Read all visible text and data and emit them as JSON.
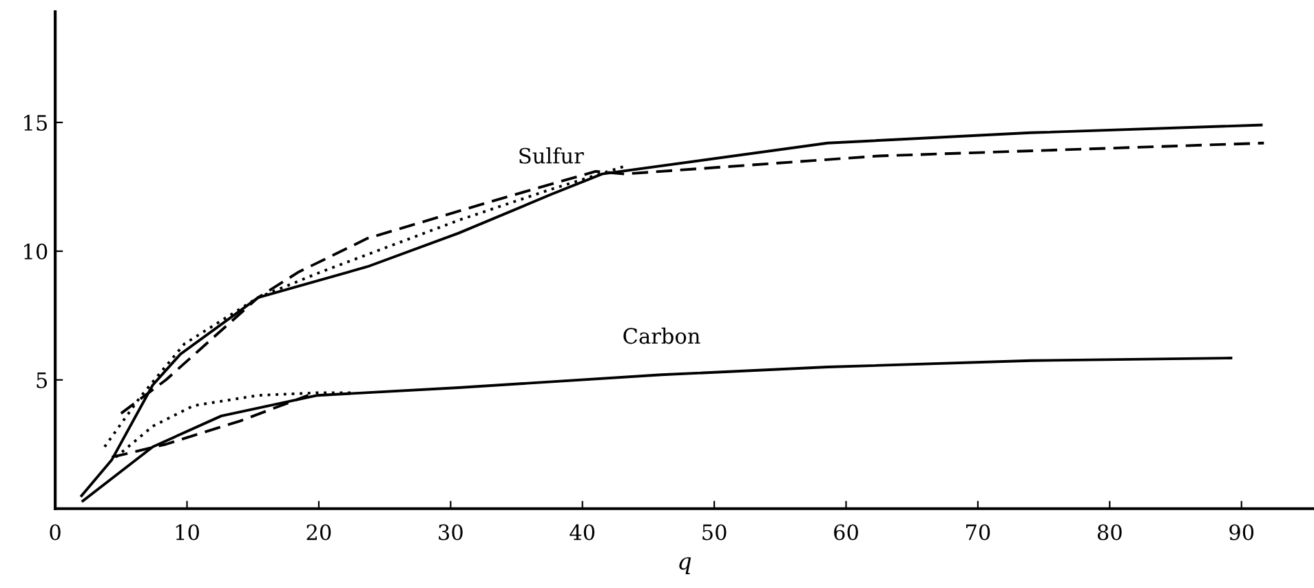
{
  "chart_data": {
    "type": "line",
    "xlabel": "q",
    "xlim": [
      0,
      95.5
    ],
    "ylim": [
      0,
      19.3
    ],
    "xticks": [
      0,
      10,
      20,
      30,
      40,
      50,
      60,
      70,
      80,
      90
    ],
    "yticks": [
      5,
      10,
      15
    ],
    "grid": false,
    "legend": false,
    "marker": "none",
    "series": [
      {
        "name": "Sulfur",
        "color": "#000000",
        "line_style": "solid",
        "x": [
          2,
          4.3,
          7.4,
          9.5,
          15.4,
          23.7,
          30.6,
          37.6,
          41.5,
          58.6,
          74,
          91.5
        ],
        "values": [
          0.5,
          1.9,
          4.8,
          6,
          8.2,
          9.4,
          10.7,
          12.2,
          13,
          14.2,
          14.6,
          14.9
        ]
      },
      {
        "color": "#000000",
        "line_style": "dashed",
        "x": [
          5,
          8.4,
          15.4,
          18.5,
          23.7,
          34.2,
          41,
          43.2,
          62.5,
          91.7
        ],
        "values": [
          3.7,
          5,
          8.2,
          9.2,
          10.5,
          12.1,
          13.1,
          13,
          13.7,
          14.2
        ]
      },
      {
        "color": "#000000",
        "line_style": "dotted",
        "x": [
          3.75,
          6.4,
          9.8,
          15.4,
          20.2,
          30.6,
          37.6,
          43.2
        ],
        "values": [
          2.4,
          4.3,
          6.4,
          8.2,
          9.2,
          11.2,
          12.4,
          13.3
        ]
      },
      {
        "name": "Carbon",
        "color": "#000000",
        "line_style": "solid",
        "x": [
          2.1,
          7.4,
          12.6,
          19.9,
          30.6,
          46,
          58.6,
          74,
          89.2
        ],
        "values": [
          0.3,
          2.4,
          3.6,
          4.4,
          4.7,
          5.2,
          5.5,
          5.75,
          5.85
        ]
      },
      {
        "color": "#000000",
        "line_style": "dashed",
        "x": [
          4.3,
          8.4,
          14,
          19.2
        ],
        "values": [
          2,
          2.5,
          3.4,
          4.4
        ]
      },
      {
        "color": "#000000",
        "line_style": "dotted",
        "x": [
          4.6,
          7.4,
          10.5,
          15.4,
          19.9,
          22.8
        ],
        "values": [
          2,
          3.2,
          4,
          4.4,
          4.5,
          4.5
        ]
      }
    ]
  }
}
